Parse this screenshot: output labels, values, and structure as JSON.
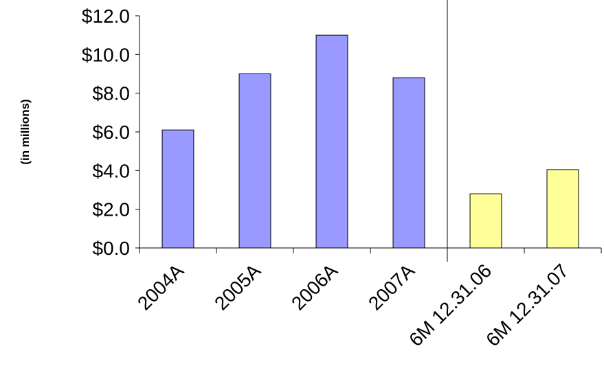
{
  "chart_data": {
    "type": "bar",
    "title": "",
    "xlabel": "",
    "ylabel": "(in millions)",
    "categories": [
      "2004A",
      "2005A",
      "2006A",
      "2007A",
      "6M 12.31.06",
      "6M 12.31.07"
    ],
    "values": [
      6.1,
      9.0,
      11.0,
      8.8,
      2.8,
      4.05
    ],
    "bar_colors": [
      "#9999ff",
      "#9999ff",
      "#9999ff",
      "#9999ff",
      "#ffff99",
      "#ffff99"
    ],
    "ylim": [
      0,
      12
    ],
    "y_ticks": [
      "$0.0",
      "$2.0",
      "$4.0",
      "$6.0",
      "$8.0",
      "$10.0",
      "$12.0"
    ],
    "y_tick_values": [
      0,
      2,
      4,
      6,
      8,
      10,
      12
    ],
    "grid": false,
    "separator_between": [
      "2007A",
      "6M 12.31.06"
    ]
  }
}
